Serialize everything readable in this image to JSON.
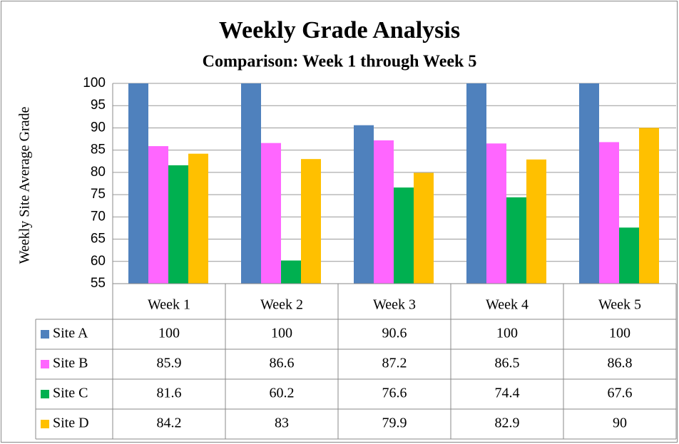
{
  "chart_data": {
    "type": "bar",
    "title": "Weekly Grade Analysis",
    "subtitle": "Comparison: Week 1 through Week 5",
    "y_label": "Weekly Site Average Grade",
    "categories": [
      "Week 1",
      "Week 2",
      "Week 3",
      "Week 4",
      "Week 5"
    ],
    "series": [
      {
        "name": "Site A",
        "color": "#4f81bd",
        "values": [
          100,
          100,
          90.6,
          100,
          100
        ]
      },
      {
        "name": "Site B",
        "color": "#ff66ff",
        "values": [
          85.9,
          86.6,
          87.2,
          86.5,
          86.8
        ]
      },
      {
        "name": "Site C",
        "color": "#00b050",
        "values": [
          81.6,
          60.2,
          76.6,
          74.4,
          67.6
        ]
      },
      {
        "name": "Site D",
        "color": "#ffc000",
        "values": [
          84.2,
          83,
          79.9,
          82.9,
          90
        ]
      }
    ],
    "ylim": [
      55,
      100
    ],
    "yticks": [
      55,
      60,
      65,
      70,
      75,
      80,
      85,
      90,
      95,
      100
    ],
    "grid": true,
    "data_table": true
  }
}
